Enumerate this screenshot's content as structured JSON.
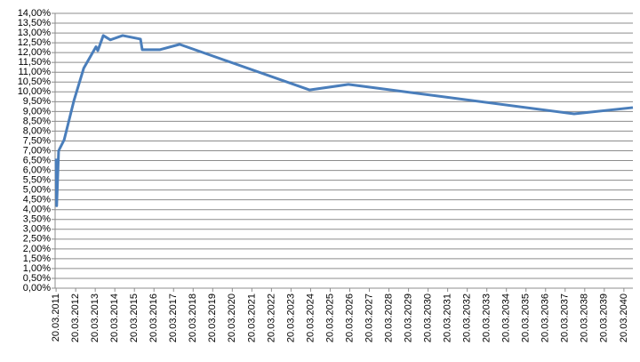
{
  "chart_data": {
    "type": "line",
    "series": [
      {
        "color": "#4a7ebb",
        "x": [
          2011.22,
          2011.25,
          2011.35,
          2011.63,
          2012.13,
          2012.63,
          2013.26,
          2013.35,
          2013.63,
          2013.99,
          2014.62,
          2015.53,
          2015.62,
          2016.53,
          2017.53,
          2024.16,
          2026.15,
          2037.68,
          2040.68
        ],
        "values": [
          6.6,
          4.2,
          7.0,
          7.55,
          9.55,
          11.2,
          12.3,
          12.1,
          12.87,
          12.65,
          12.87,
          12.69,
          12.15,
          12.15,
          12.42,
          10.1,
          10.38,
          8.88,
          9.2
        ]
      }
    ],
    "xlim": [
      2011.17,
      2040.68
    ],
    "xticks": [
      {
        "value": 2011.22,
        "label": "20.03.2011"
      },
      {
        "value": 2012.22,
        "label": "20.03.2012"
      },
      {
        "value": 2013.22,
        "label": "20.03.2013"
      },
      {
        "value": 2014.22,
        "label": "20.03.2014"
      },
      {
        "value": 2015.22,
        "label": "20.03.2015"
      },
      {
        "value": 2016.22,
        "label": "20.03.2016"
      },
      {
        "value": 2017.22,
        "label": "20.03.2017"
      },
      {
        "value": 2018.22,
        "label": "20.03.2018"
      },
      {
        "value": 2019.22,
        "label": "20.03.2019"
      },
      {
        "value": 2020.22,
        "label": "20.03.2020"
      },
      {
        "value": 2021.22,
        "label": "20.03.2021"
      },
      {
        "value": 2022.22,
        "label": "20.03.2022"
      },
      {
        "value": 2023.22,
        "label": "20.03.2023"
      },
      {
        "value": 2024.22,
        "label": "20.03.2024"
      },
      {
        "value": 2025.22,
        "label": "20.03.2025"
      },
      {
        "value": 2026.22,
        "label": "20.03.2026"
      },
      {
        "value": 2027.22,
        "label": "20.03.2027"
      },
      {
        "value": 2028.22,
        "label": "20.03.2028"
      },
      {
        "value": 2029.22,
        "label": "20.03.2029"
      },
      {
        "value": 2030.22,
        "label": "20.03.2030"
      },
      {
        "value": 2031.22,
        "label": "20.03.2031"
      },
      {
        "value": 2032.22,
        "label": "20.03.2032"
      },
      {
        "value": 2033.22,
        "label": "20.03.2033"
      },
      {
        "value": 2034.22,
        "label": "20.03.2034"
      },
      {
        "value": 2035.22,
        "label": "20.03.2035"
      },
      {
        "value": 2036.22,
        "label": "20.03.2036"
      },
      {
        "value": 2037.22,
        "label": "20.03.2037"
      },
      {
        "value": 2038.22,
        "label": "20.03.2038"
      },
      {
        "value": 2039.22,
        "label": "20.03.2039"
      },
      {
        "value": 2040.22,
        "label": "20.03.2040"
      }
    ],
    "ylim": [
      0,
      14
    ],
    "yticks": [
      {
        "value": 0,
        "label": "0,00%"
      },
      {
        "value": 0.5,
        "label": "0,50%"
      },
      {
        "value": 1,
        "label": "1,00%"
      },
      {
        "value": 1.5,
        "label": "1,50%"
      },
      {
        "value": 2,
        "label": "2,00%"
      },
      {
        "value": 2.5,
        "label": "2,50%"
      },
      {
        "value": 3,
        "label": "3,00%"
      },
      {
        "value": 3.5,
        "label": "3,50%"
      },
      {
        "value": 4,
        "label": "4,00%"
      },
      {
        "value": 4.5,
        "label": "4,50%"
      },
      {
        "value": 5,
        "label": "5,00%"
      },
      {
        "value": 5.5,
        "label": "5,50%"
      },
      {
        "value": 6,
        "label": "6,00%"
      },
      {
        "value": 6.5,
        "label": "6,50%"
      },
      {
        "value": 7,
        "label": "7,00%"
      },
      {
        "value": 7.5,
        "label": "7,50%"
      },
      {
        "value": 8,
        "label": "8,00%"
      },
      {
        "value": 8.5,
        "label": "8,50%"
      },
      {
        "value": 9,
        "label": "9,00%"
      },
      {
        "value": 9.5,
        "label": "9,50%"
      },
      {
        "value": 10,
        "label": "10,00%"
      },
      {
        "value": 10.5,
        "label": "10,50%"
      },
      {
        "value": 11,
        "label": "11,00%"
      },
      {
        "value": 11.5,
        "label": "11,50%"
      },
      {
        "value": 12,
        "label": "12,00%"
      },
      {
        "value": 12.5,
        "label": "12,50%"
      },
      {
        "value": 13,
        "label": "13,00%"
      },
      {
        "value": 13.5,
        "label": "13,50%"
      },
      {
        "value": 14,
        "label": "14,00%"
      }
    ],
    "grid": true
  }
}
